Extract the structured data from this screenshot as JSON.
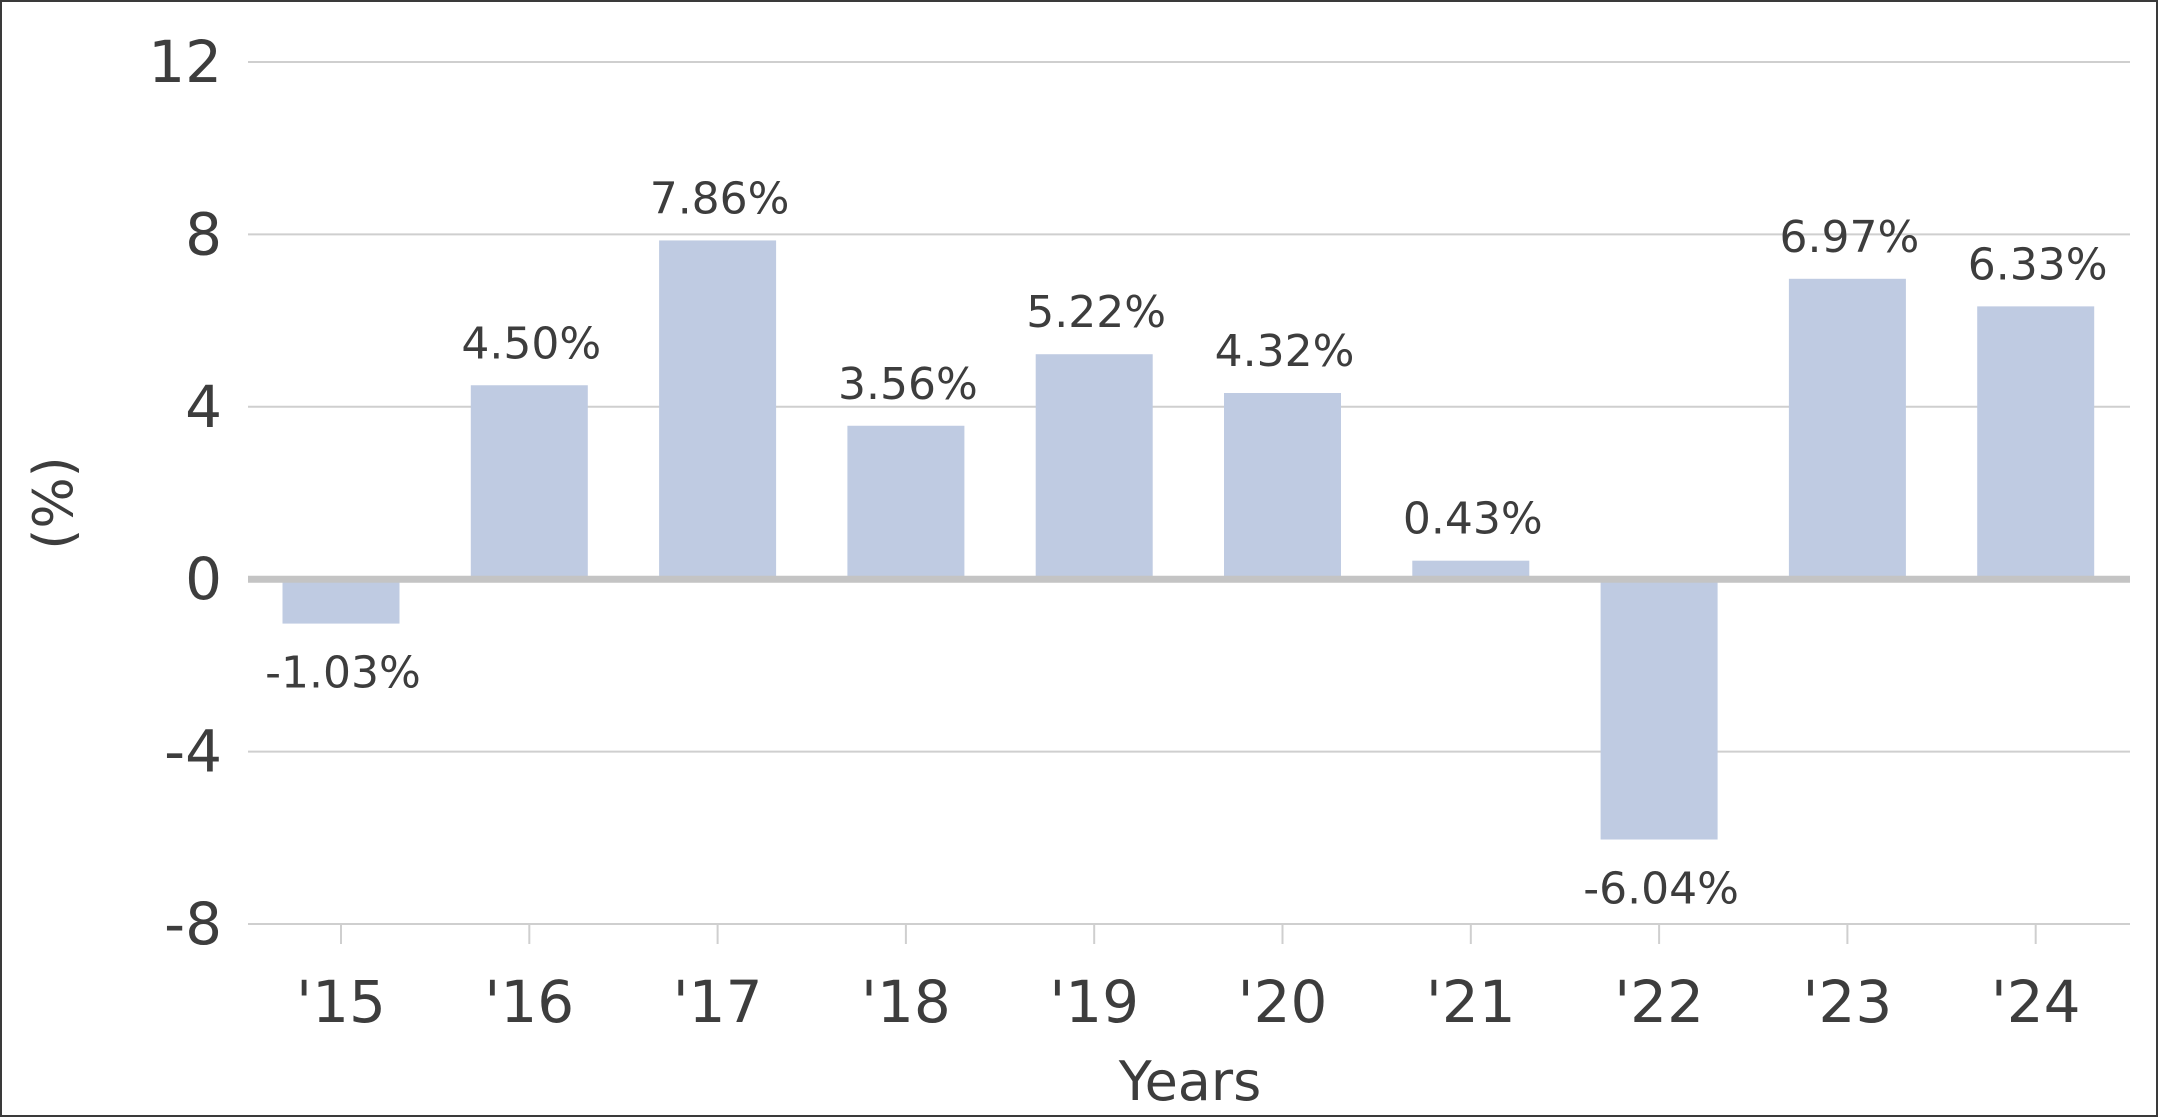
{
  "chart_data": {
    "type": "bar",
    "categories": [
      "'15",
      "'16",
      "'17",
      "'18",
      "'19",
      "'20",
      "'21",
      "'22",
      "'23",
      "'24"
    ],
    "values": [
      -1.03,
      4.5,
      7.86,
      3.56,
      5.22,
      4.32,
      0.43,
      -6.04,
      6.97,
      6.33
    ],
    "data_labels": [
      "-1.03%",
      "4.50%",
      "7.86%",
      "3.56%",
      "5.22%",
      "4.32%",
      "0.43%",
      "-6.04%",
      "6.97%",
      "6.33%"
    ],
    "xlabel": "Years",
    "ylabel": "(%)",
    "ylim": [
      -8,
      12
    ],
    "yticks": [
      12,
      8,
      4,
      0,
      -4,
      -8
    ],
    "ytick_labels": [
      "12",
      "8",
      "4",
      "0",
      "-4",
      "-8"
    ],
    "grid": true,
    "bar_color": "#bfcbe2",
    "zero_line_color": "#c4c4c4",
    "grid_color": "#cfcfcf",
    "text_color": "#3d3d3d"
  }
}
